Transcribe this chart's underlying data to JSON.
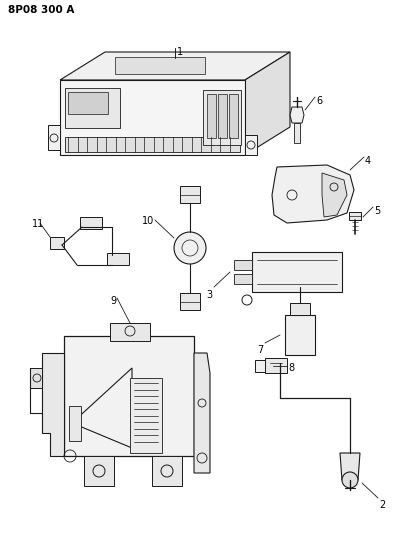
{
  "title": "8P08 300 A",
  "bg_color": "#ffffff",
  "line_color": "#1a1a1a",
  "fig_width": 4.05,
  "fig_height": 5.33,
  "dpi": 100
}
